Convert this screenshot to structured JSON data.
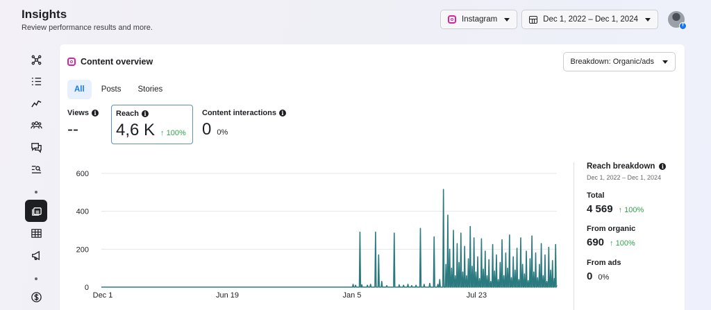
{
  "header": {
    "title": "Insights",
    "subtitle": "Review performance results and more."
  },
  "topbar": {
    "platform": "Instagram",
    "date_range": "Dec 1, 2022 – Dec 1, 2024",
    "avatar_badge": "f"
  },
  "sidebar": {
    "items": [
      {
        "icon": "network-icon"
      },
      {
        "icon": "list-icon"
      },
      {
        "icon": "trend-icon"
      },
      {
        "icon": "audience-icon"
      },
      {
        "icon": "messages-icon"
      },
      {
        "icon": "search-list-icon"
      },
      {
        "icon": "content-icon",
        "active": true
      },
      {
        "icon": "table-icon"
      },
      {
        "icon": "megaphone-icon"
      },
      {
        "icon": "dollar-icon"
      }
    ]
  },
  "card": {
    "title": "Content overview",
    "breakdown": "Breakdown: Organic/ads",
    "tabs": [
      "All",
      "Posts",
      "Stories"
    ],
    "active_tab": "All",
    "metrics": {
      "views": {
        "label": "Views",
        "value": "--",
        "change": ""
      },
      "reach": {
        "label": "Reach",
        "value": "4,6 K",
        "change": "↑ 100%"
      },
      "interactions": {
        "label": "Content interactions",
        "value": "0",
        "change": "0%"
      }
    }
  },
  "chart_data": {
    "type": "line",
    "series": [
      {
        "values": [
          0,
          0,
          0,
          0,
          0,
          0,
          0,
          0,
          0,
          0,
          0,
          0,
          0,
          0,
          0,
          0,
          0,
          0,
          0,
          0,
          0,
          0,
          0,
          0,
          0,
          0,
          0,
          0,
          0,
          0,
          0,
          0,
          0,
          0,
          0,
          0,
          0,
          0,
          0,
          0,
          0,
          0,
          0,
          0,
          0,
          0,
          0,
          0,
          0,
          0,
          0,
          0,
          0,
          0,
          0,
          0,
          0,
          0,
          0,
          0,
          0,
          0,
          0,
          0,
          0,
          0,
          0,
          0,
          0,
          0,
          0,
          0,
          0,
          0,
          0,
          0,
          0,
          0,
          0,
          0,
          0,
          0,
          0,
          0,
          0,
          0,
          0,
          0,
          0,
          0,
          0,
          0,
          0,
          0,
          0,
          0,
          0,
          0,
          0,
          0,
          0,
          0,
          0,
          0,
          0,
          0,
          0,
          0,
          0,
          0,
          0,
          0,
          0,
          0,
          0,
          0,
          0,
          0,
          0,
          0,
          0,
          0,
          0,
          0,
          0,
          0,
          0,
          0,
          0,
          0,
          0,
          0,
          0,
          0,
          0,
          0,
          0,
          0,
          0,
          0,
          0,
          0,
          0,
          0,
          0,
          0,
          0,
          0,
          0,
          0,
          0,
          0,
          0,
          0,
          0,
          0,
          0,
          0,
          0,
          0,
          0,
          0,
          0,
          0,
          0,
          0,
          0,
          0,
          0,
          0,
          0,
          0,
          0,
          0,
          0,
          0,
          0,
          0,
          0,
          0,
          0,
          0,
          0,
          0,
          0,
          0,
          0,
          0,
          0,
          0,
          0,
          0,
          0,
          0,
          0,
          0,
          0,
          0,
          0,
          0,
          0,
          0,
          0,
          0,
          0,
          0,
          0,
          0,
          0,
          0,
          0,
          0,
          0,
          0,
          0,
          0,
          0,
          0,
          0,
          0,
          0,
          0,
          0,
          0,
          0,
          0,
          0,
          0,
          0,
          0,
          0,
          0,
          0,
          0,
          0,
          0,
          0,
          0,
          0,
          0,
          0,
          0,
          0,
          0,
          0,
          0,
          0,
          0,
          0,
          0,
          0,
          0,
          0,
          0,
          0,
          0,
          0,
          0,
          0,
          0,
          0,
          0,
          0,
          0,
          0,
          0,
          0,
          0,
          0,
          0,
          0,
          0,
          0,
          0,
          0,
          0,
          0,
          0,
          0,
          0,
          0,
          0,
          0,
          0,
          0,
          0,
          0,
          0,
          0,
          0,
          0,
          0,
          0,
          0,
          0,
          0,
          0,
          0,
          0,
          0,
          0,
          0,
          0,
          0,
          0,
          0,
          0,
          0,
          0,
          0,
          0,
          0,
          0,
          0,
          0,
          0,
          0,
          0,
          0,
          0,
          0,
          0,
          0,
          0,
          0,
          0,
          0,
          0,
          0,
          0,
          0,
          0,
          0,
          0,
          0,
          0,
          0,
          0,
          0,
          0,
          0,
          0,
          0,
          0,
          0,
          0,
          0,
          0,
          0,
          0,
          0,
          0,
          0,
          0,
          0,
          0,
          0,
          0,
          0,
          0,
          0,
          0,
          0,
          0,
          0,
          0,
          0,
          0,
          0,
          0,
          0,
          0,
          0,
          0,
          0,
          0,
          0,
          0,
          0,
          0,
          0,
          0,
          0,
          0,
          0,
          0,
          0,
          0,
          0,
          0,
          0,
          0,
          0,
          0,
          0,
          0,
          0,
          0,
          0,
          0,
          0,
          0,
          0,
          0,
          0,
          0,
          0,
          0,
          0,
          0,
          0,
          0,
          0,
          0,
          0,
          0,
          0,
          0,
          0,
          0,
          0,
          0,
          0,
          0,
          0,
          0,
          0,
          0,
          0,
          0,
          0,
          0,
          0,
          0,
          0,
          0,
          0,
          0,
          0,
          0,
          0,
          0,
          0,
          0,
          0,
          0,
          0,
          0,
          0,
          0,
          0,
          0,
          0,
          0,
          0,
          0,
          0,
          0,
          0,
          0,
          0,
          0,
          0,
          0,
          0,
          0,
          0,
          0,
          0,
          0,
          0,
          0,
          0,
          0,
          0,
          0,
          0,
          0,
          0,
          0,
          0,
          0,
          0,
          0,
          0,
          0,
          0,
          0,
          0,
          0,
          0,
          0,
          0,
          0,
          0,
          0,
          0,
          0,
          0,
          0,
          0,
          0,
          0,
          0,
          0,
          0,
          0,
          0,
          0,
          0,
          0,
          0,
          0,
          0,
          0,
          0,
          0,
          0,
          0,
          0,
          0,
          0,
          0,
          0,
          0,
          0,
          0,
          0,
          0,
          0,
          0,
          0,
          0,
          0,
          0,
          0,
          0,
          0,
          0,
          0,
          0,
          0,
          0,
          0,
          0,
          0,
          0,
          0,
          0,
          0,
          0,
          0,
          0,
          0,
          0,
          0,
          0,
          0,
          0,
          0,
          0,
          0,
          0,
          0,
          0,
          0,
          0,
          0,
          0,
          0,
          0,
          0,
          0,
          0,
          0,
          0,
          0,
          0,
          0,
          0,
          0,
          0,
          0,
          0,
          0,
          0,
          0,
          0,
          0,
          0,
          0,
          0,
          0,
          0,
          0,
          0,
          0,
          0,
          0,
          0,
          0,
          0,
          0,
          0,
          0,
          0,
          0,
          0,
          0,
          0,
          0,
          0,
          0,
          0,
          0,
          0,
          0,
          0,
          0,
          0,
          0,
          0,
          0,
          0,
          0,
          0,
          0,
          0,
          0,
          0,
          0,
          0,
          0,
          0,
          0,
          0,
          0,
          0,
          0,
          0,
          0,
          0,
          0,
          0,
          0,
          0,
          0,
          0,
          0,
          0,
          0,
          0,
          0,
          0,
          0,
          0,
          0,
          0,
          0,
          0,
          0,
          0,
          0,
          0,
          0,
          0,
          0,
          0,
          0,
          0,
          0,
          0,
          0,
          0,
          0,
          0,
          0,
          0,
          0,
          0,
          0,
          0,
          0,
          0,
          0,
          0,
          0,
          0,
          0,
          0,
          0,
          0,
          0,
          0,
          0,
          0,
          0,
          0,
          0,
          0,
          0,
          0,
          0,
          0,
          0,
          0,
          0,
          0,
          0,
          0,
          0,
          0,
          0,
          0,
          0,
          0,
          0,
          0,
          0,
          0,
          0,
          0,
          0,
          0,
          0,
          0,
          0,
          0,
          0,
          0,
          0,
          0,
          0,
          0,
          0,
          0,
          0,
          0,
          0,
          0,
          0,
          0,
          0,
          0,
          0,
          0,
          0,
          0,
          0,
          0,
          0,
          0,
          0,
          0,
          0,
          0,
          0,
          0,
          0,
          0,
          0,
          0,
          0,
          0,
          0,
          0,
          0,
          0,
          0,
          0,
          0,
          0,
          0,
          0,
          0,
          0,
          0,
          0,
          0,
          0,
          0,
          0,
          0,
          0,
          0,
          0,
          0,
          0,
          0,
          0,
          0,
          0,
          0,
          0,
          0,
          0,
          0,
          0,
          0,
          0,
          0,
          0,
          0,
          0,
          0,
          0,
          0,
          0,
          0,
          0,
          0,
          0,
          0,
          0,
          0,
          0,
          0,
          0,
          0,
          0,
          0,
          0,
          0,
          0,
          0,
          0,
          0,
          0,
          0,
          0,
          0,
          0,
          0,
          0,
          0,
          0,
          0,
          0,
          0,
          0,
          0,
          0,
          0,
          0,
          0,
          0,
          0,
          0,
          0,
          0,
          0,
          0,
          0,
          0,
          0,
          0,
          0,
          0,
          0,
          0,
          0,
          0,
          0,
          0,
          0,
          0,
          0,
          0,
          0,
          0,
          0,
          0,
          0,
          0,
          0,
          0,
          0,
          0,
          0,
          0,
          0,
          0,
          0,
          0,
          0,
          0,
          0,
          0,
          0,
          0,
          0,
          0,
          0,
          0,
          0
        ]
      }
    ],
    "peaks": [
      {
        "day": 404,
        "value": 15
      },
      {
        "day": 408,
        "value": 10
      },
      {
        "day": 415,
        "value": 290
      },
      {
        "day": 418,
        "value": 12
      },
      {
        "day": 427,
        "value": 10
      },
      {
        "day": 432,
        "value": 15
      },
      {
        "day": 440,
        "value": 290
      },
      {
        "day": 445,
        "value": 170
      },
      {
        "day": 450,
        "value": 30
      },
      {
        "day": 458,
        "value": 8
      },
      {
        "day": 470,
        "value": 285
      },
      {
        "day": 478,
        "value": 12
      },
      {
        "day": 485,
        "value": 10
      },
      {
        "day": 492,
        "value": 15
      },
      {
        "day": 498,
        "value": 8
      },
      {
        "day": 505,
        "value": 10
      },
      {
        "day": 512,
        "value": 310
      },
      {
        "day": 518,
        "value": 15
      },
      {
        "day": 527,
        "value": 20
      },
      {
        "day": 534,
        "value": 265
      },
      {
        "day": 540,
        "value": 15
      },
      {
        "day": 543,
        "value": 40
      },
      {
        "day": 549,
        "value": 515
      },
      {
        "day": 553,
        "value": 120
      },
      {
        "day": 556,
        "value": 380
      },
      {
        "day": 559,
        "value": 200
      },
      {
        "day": 562,
        "value": 100
      },
      {
        "day": 565,
        "value": 300
      },
      {
        "day": 568,
        "value": 60
      },
      {
        "day": 571,
        "value": 230
      },
      {
        "day": 574,
        "value": 130
      },
      {
        "day": 577,
        "value": 285
      },
      {
        "day": 580,
        "value": 80
      },
      {
        "day": 583,
        "value": 215
      },
      {
        "day": 586,
        "value": 60
      },
      {
        "day": 589,
        "value": 150
      },
      {
        "day": 592,
        "value": 320
      },
      {
        "day": 595,
        "value": 110
      },
      {
        "day": 598,
        "value": 260
      },
      {
        "day": 601,
        "value": 80
      },
      {
        "day": 604,
        "value": 160
      },
      {
        "day": 607,
        "value": 45
      },
      {
        "day": 610,
        "value": 255
      },
      {
        "day": 613,
        "value": 95
      },
      {
        "day": 616,
        "value": 190
      },
      {
        "day": 619,
        "value": 60
      },
      {
        "day": 622,
        "value": 145
      },
      {
        "day": 625,
        "value": 30
      },
      {
        "day": 628,
        "value": 225
      },
      {
        "day": 631,
        "value": 85
      },
      {
        "day": 634,
        "value": 170
      },
      {
        "day": 637,
        "value": 40
      },
      {
        "day": 640,
        "value": 130
      },
      {
        "day": 643,
        "value": 250
      },
      {
        "day": 646,
        "value": 60
      },
      {
        "day": 649,
        "value": 180
      },
      {
        "day": 652,
        "value": 100
      },
      {
        "day": 655,
        "value": 275
      },
      {
        "day": 658,
        "value": 50
      },
      {
        "day": 661,
        "value": 160
      },
      {
        "day": 664,
        "value": 90
      },
      {
        "day": 667,
        "value": 205
      },
      {
        "day": 670,
        "value": 40
      },
      {
        "day": 673,
        "value": 260
      },
      {
        "day": 676,
        "value": 120
      },
      {
        "day": 679,
        "value": 70
      },
      {
        "day": 682,
        "value": 190
      },
      {
        "day": 685,
        "value": 35
      },
      {
        "day": 688,
        "value": 150
      },
      {
        "day": 691,
        "value": 270
      },
      {
        "day": 694,
        "value": 80
      },
      {
        "day": 697,
        "value": 180
      },
      {
        "day": 700,
        "value": 50
      },
      {
        "day": 703,
        "value": 120
      },
      {
        "day": 706,
        "value": 230
      },
      {
        "day": 709,
        "value": 60
      },
      {
        "day": 712,
        "value": 170
      },
      {
        "day": 715,
        "value": 30
      },
      {
        "day": 718,
        "value": 210
      },
      {
        "day": 721,
        "value": 90
      },
      {
        "day": 724,
        "value": 140
      },
      {
        "day": 727,
        "value": 45
      },
      {
        "day": 729,
        "value": 225
      },
      {
        "day": 731,
        "value": 10
      }
    ],
    "total_days": 732,
    "x_ticks": [
      {
        "day": 0,
        "label": "Dec 1"
      },
      {
        "day": 200,
        "label": "Jun 19"
      },
      {
        "day": 400,
        "label": "Jan 5"
      },
      {
        "day": 600,
        "label": "Jul 23"
      }
    ],
    "y_ticks": [
      0,
      200,
      400,
      600
    ],
    "ylim": [
      0,
      600
    ],
    "grid": true,
    "line_color": "#2b7a7f"
  },
  "reach_breakdown": {
    "title": "Reach breakdown",
    "date_range": "Dec 1, 2022 – Dec 1, 2024",
    "total": {
      "label": "Total",
      "value": "4 569",
      "change": "↑ 100%"
    },
    "organic": {
      "label": "From organic",
      "value": "690",
      "change": "↑ 100%"
    },
    "ads": {
      "label": "From ads",
      "value": "0",
      "change": "0%"
    }
  }
}
